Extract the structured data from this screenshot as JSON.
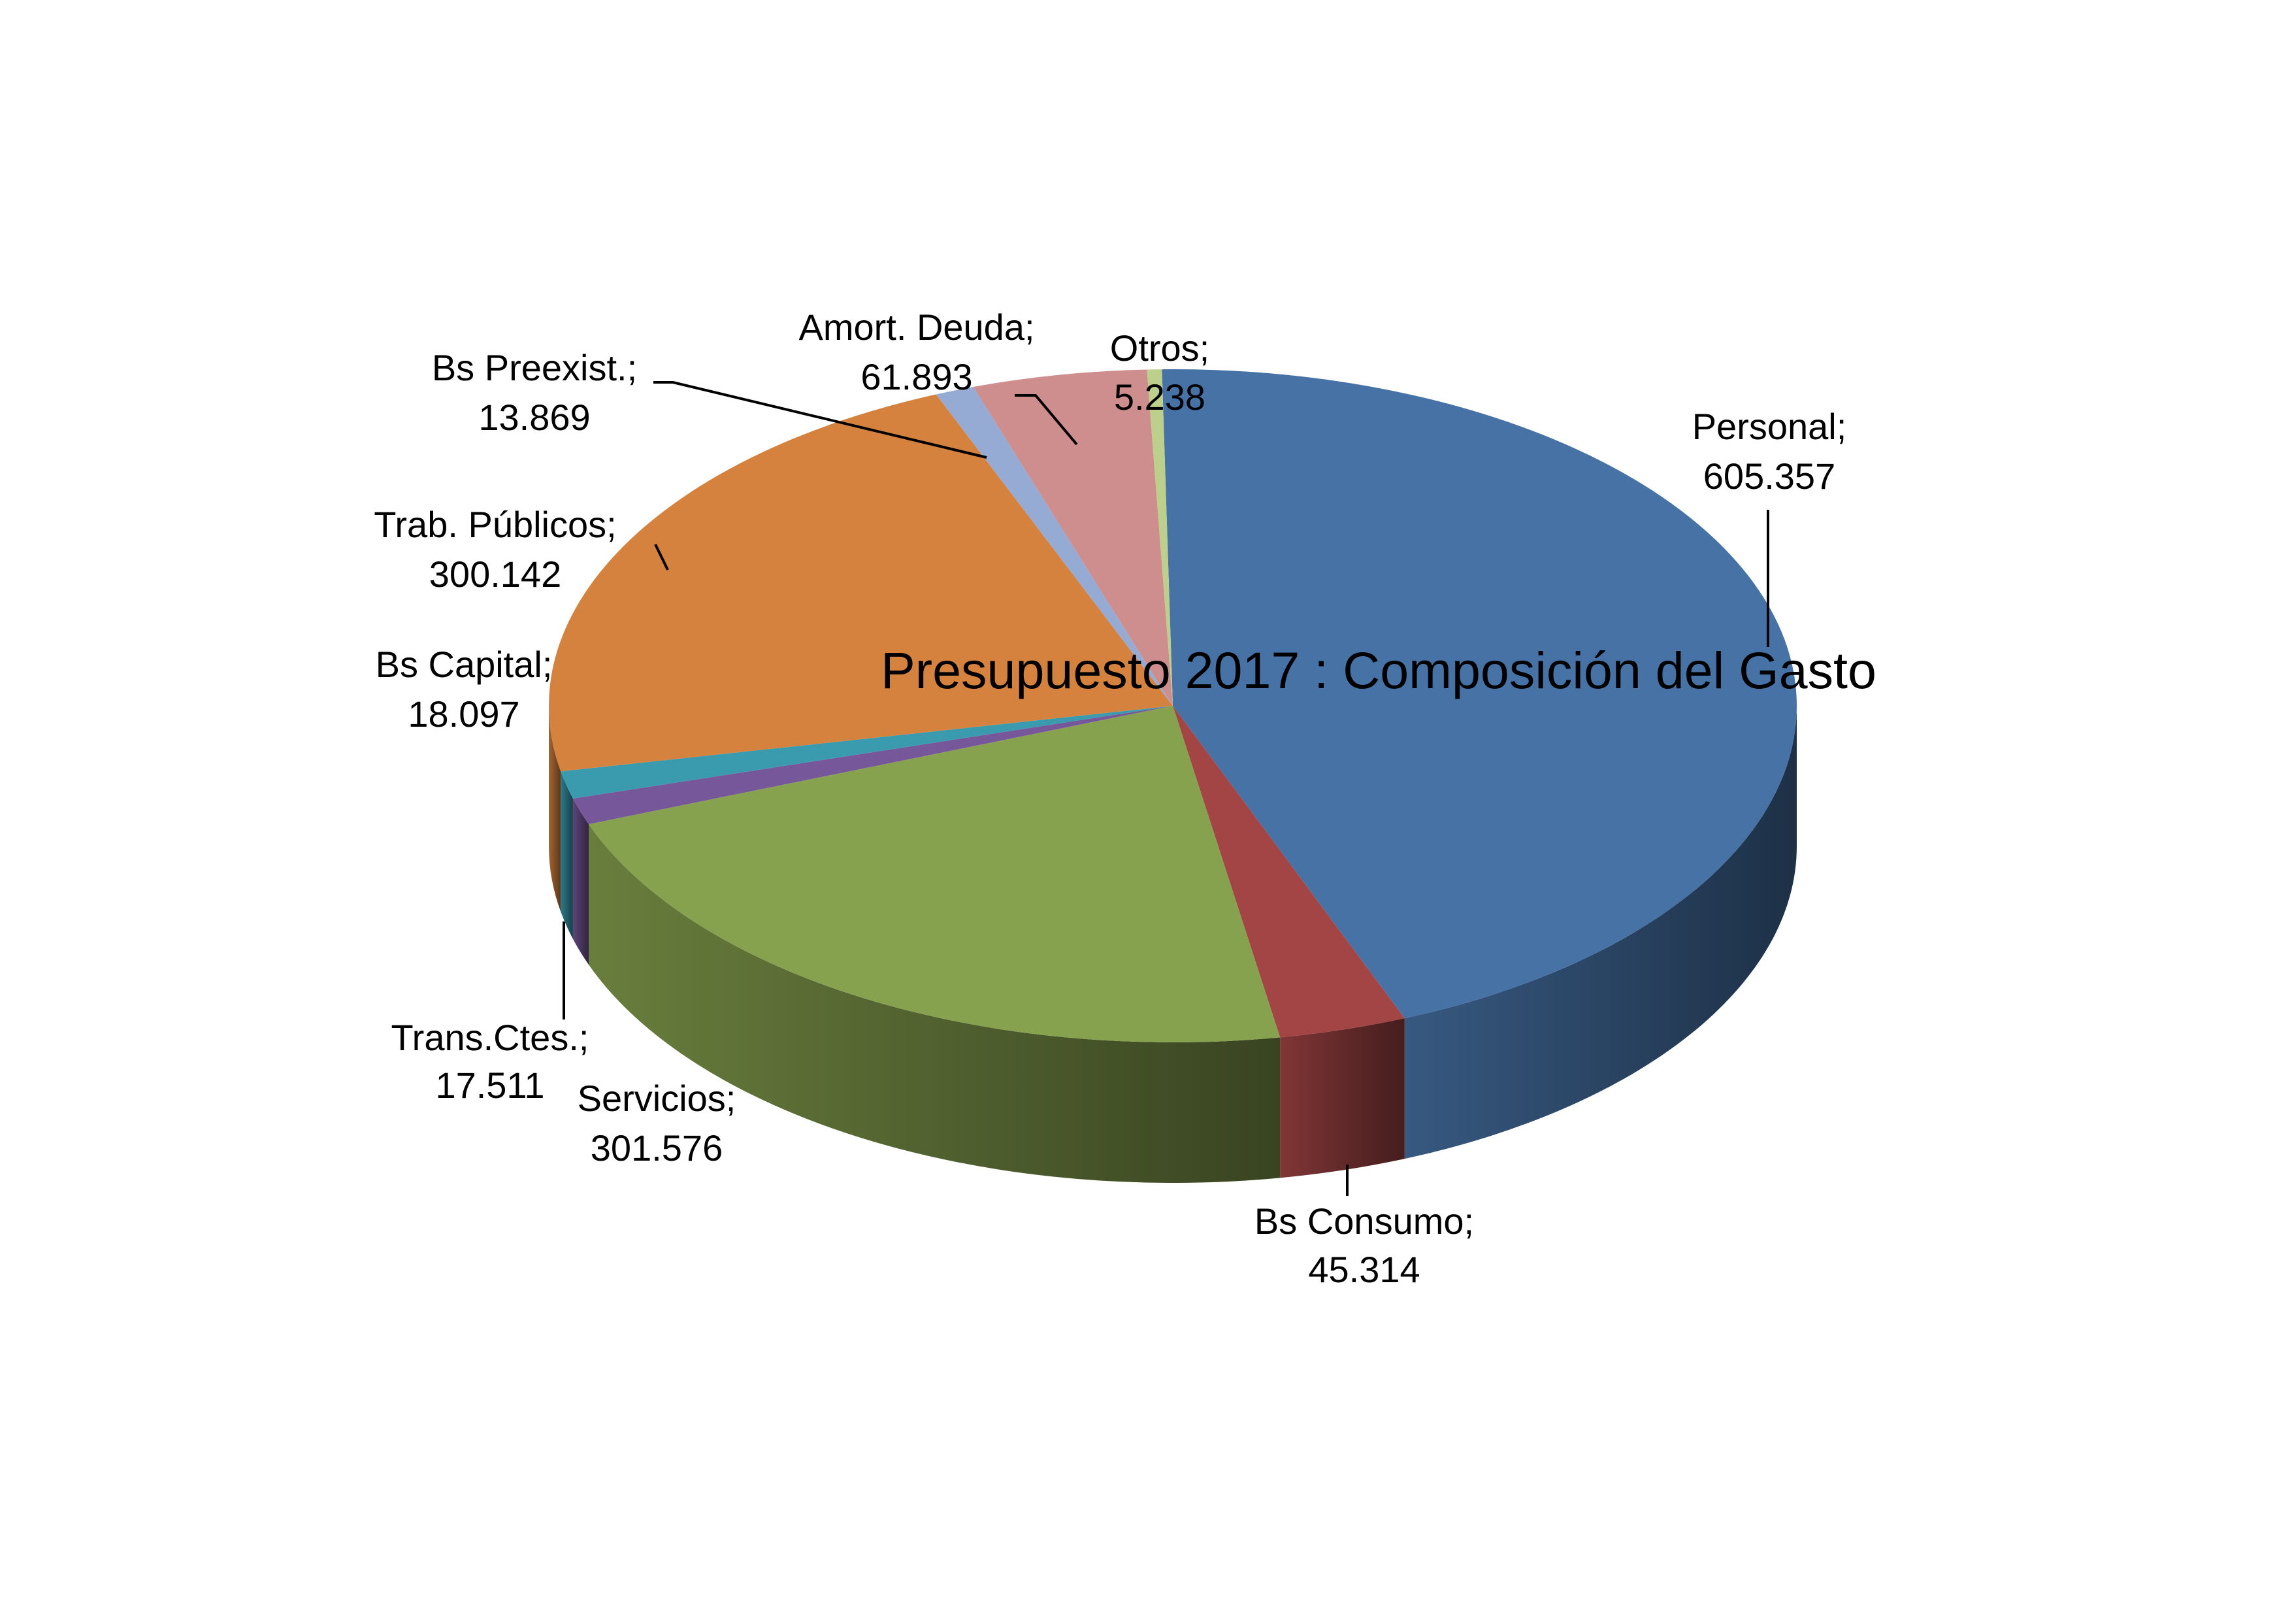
{
  "chart_data": {
    "type": "pie",
    "style": "3d",
    "title": "Presupuesto 2017 : Composición del Gasto",
    "slices": [
      {
        "label": "Personal;",
        "value_text": "605.357",
        "value": 605357,
        "color": "#4672A6"
      },
      {
        "label": "Bs Consumo;",
        "value_text": "45.314",
        "value": 45314,
        "color": "#A44545"
      },
      {
        "label": "Servicios;",
        "value_text": "301.576",
        "value": 301576,
        "color": "#87A24E"
      },
      {
        "label": "Trans.Ctes.;",
        "value_text": "17.511",
        "value": 17511,
        "color": "#76589A"
      },
      {
        "label": "Bs Capital;",
        "value_text": "18.097",
        "value": 18097,
        "color": "#3A9AAE"
      },
      {
        "label": "Trab. Públicos;",
        "value_text": "300.142",
        "value": 300142,
        "color": "#D4823D"
      },
      {
        "label": "Bs Preexist.;",
        "value_text": "13.869",
        "value": 13869,
        "color": "#96ABD3"
      },
      {
        "label": "Amort. Deuda;",
        "value_text": "61.893",
        "value": 61893,
        "color": "#CE8E8E"
      },
      {
        "label": "Otros;",
        "value_text": "5.238",
        "value": 5238,
        "color": "#BCD08C"
      }
    ]
  }
}
